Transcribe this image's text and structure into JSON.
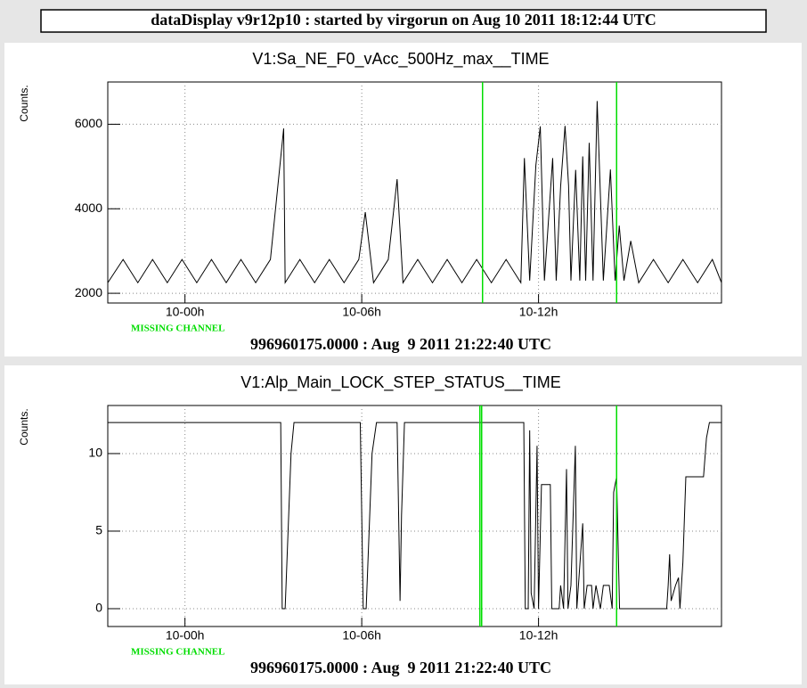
{
  "header": "dataDisplay v9r12p10 : started by virgorun on Aug 10 2011 18:12:44 UTC",
  "chart_data": [
    {
      "type": "line",
      "title": "V1:Sa_NE_F0_vAcc_500Hz_max__TIME",
      "ylabel": "Counts.",
      "annotation": "MISSING CHANNEL",
      "footer": "996960175.0000 : Aug  9 2011 21:22:40 UTC",
      "xlim": [
        -2.62,
        18.21
      ],
      "xticks": [
        {
          "value": 0,
          "label": "10-00h"
        },
        {
          "value": 6,
          "label": "10-06h"
        },
        {
          "value": 12,
          "label": "10-12h"
        }
      ],
      "ylim": [
        1770,
        7000
      ],
      "yticks": [
        2000,
        4000,
        6000
      ],
      "grid": true,
      "markers": {
        "color": "#00dd00",
        "x": [
          10.1,
          14.65
        ]
      },
      "series": [
        {
          "color": "#000000",
          "x": [
            -2.62,
            -2.1,
            -1.6,
            -1.1,
            -0.6,
            -0.1,
            0.4,
            0.9,
            1.4,
            1.9,
            2.4,
            2.9,
            3.35,
            3.4,
            3.9,
            4.4,
            4.9,
            5.4,
            5.9,
            6.12,
            6.4,
            6.9,
            7.2,
            7.4,
            7.9,
            8.4,
            8.9,
            9.4,
            9.9,
            10.4,
            10.9,
            11.4,
            11.52,
            11.7,
            11.91,
            12.06,
            12.2,
            12.48,
            12.6,
            12.75,
            12.9,
            13.02,
            13.1,
            13.26,
            13.4,
            13.5,
            13.6,
            13.72,
            13.85,
            13.99,
            14.2,
            14.44,
            14.6,
            14.74,
            14.9,
            15.13,
            15.4,
            15.9,
            16.4,
            16.9,
            17.4,
            17.9,
            18.21
          ],
          "values": [
            2250,
            2800,
            2250,
            2800,
            2250,
            2800,
            2250,
            2800,
            2250,
            2800,
            2250,
            2800,
            5900,
            2250,
            2800,
            2250,
            2800,
            2250,
            2800,
            3920,
            2250,
            2800,
            4700,
            2250,
            2800,
            2250,
            2800,
            2250,
            2800,
            2250,
            2800,
            2250,
            5200,
            2300,
            5030,
            5950,
            2300,
            5200,
            2300,
            4530,
            5960,
            4550,
            2300,
            4920,
            2300,
            5240,
            2300,
            5560,
            2300,
            6550,
            2300,
            4930,
            2300,
            3600,
            2300,
            3240,
            2250,
            2800,
            2250,
            2800,
            2250,
            2800,
            2250
          ]
        }
      ]
    },
    {
      "type": "line",
      "title": "V1:Alp_Main_LOCK_STEP_STATUS__TIME",
      "ylabel": "Counts.",
      "annotation": "MISSING CHANNEL",
      "footer": "996960175.0000 : Aug  9 2011 21:22:40 UTC",
      "xlim": [
        -2.62,
        18.21
      ],
      "xticks": [
        {
          "value": 0,
          "label": "10-00h"
        },
        {
          "value": 6,
          "label": "10-06h"
        },
        {
          "value": 12,
          "label": "10-12h"
        }
      ],
      "ylim": [
        -1.15,
        13.1
      ],
      "yticks": [
        0,
        5,
        10
      ],
      "grid": true,
      "markers": {
        "color": "#00dd00",
        "x": [
          10.01,
          10.07,
          14.65
        ]
      },
      "series": [
        {
          "color": "#000000",
          "x": [
            -2.62,
            3.25,
            3.3,
            3.4,
            3.5,
            3.6,
            3.7,
            5.95,
            6.05,
            6.15,
            6.25,
            6.35,
            6.5,
            7.2,
            7.3,
            7.35,
            7.45,
            11.5,
            11.55,
            11.65,
            11.7,
            11.75,
            11.85,
            11.95,
            12.0,
            12.1,
            12.4,
            12.45,
            12.7,
            12.75,
            12.85,
            12.95,
            13.0,
            13.1,
            13.25,
            13.3,
            13.5,
            13.55,
            13.65,
            13.8,
            13.85,
            13.95,
            14.1,
            14.2,
            14.4,
            14.5,
            14.55,
            14.65,
            14.75,
            16.35,
            16.4,
            16.45,
            16.5,
            16.65,
            16.75,
            16.8,
            16.9,
            17.0,
            17.6,
            17.7,
            17.8,
            18.21
          ],
          "values": [
            12,
            12,
            0,
            0,
            5,
            10,
            12,
            12,
            0,
            0,
            5,
            10,
            12,
            12,
            0.5,
            6,
            12,
            12,
            0,
            0,
            11.5,
            1,
            0,
            10.5,
            0,
            8,
            8,
            0,
            0,
            1.5,
            0,
            9,
            0,
            1.5,
            10.5,
            0,
            5.5,
            0,
            1.5,
            1.5,
            0,
            1.5,
            0,
            1.5,
            1.5,
            0,
            7.5,
            8.5,
            0,
            0,
            1.5,
            3.5,
            0.5,
            1.5,
            2,
            0,
            3,
            8.5,
            8.5,
            11,
            12,
            12
          ]
        }
      ]
    }
  ]
}
